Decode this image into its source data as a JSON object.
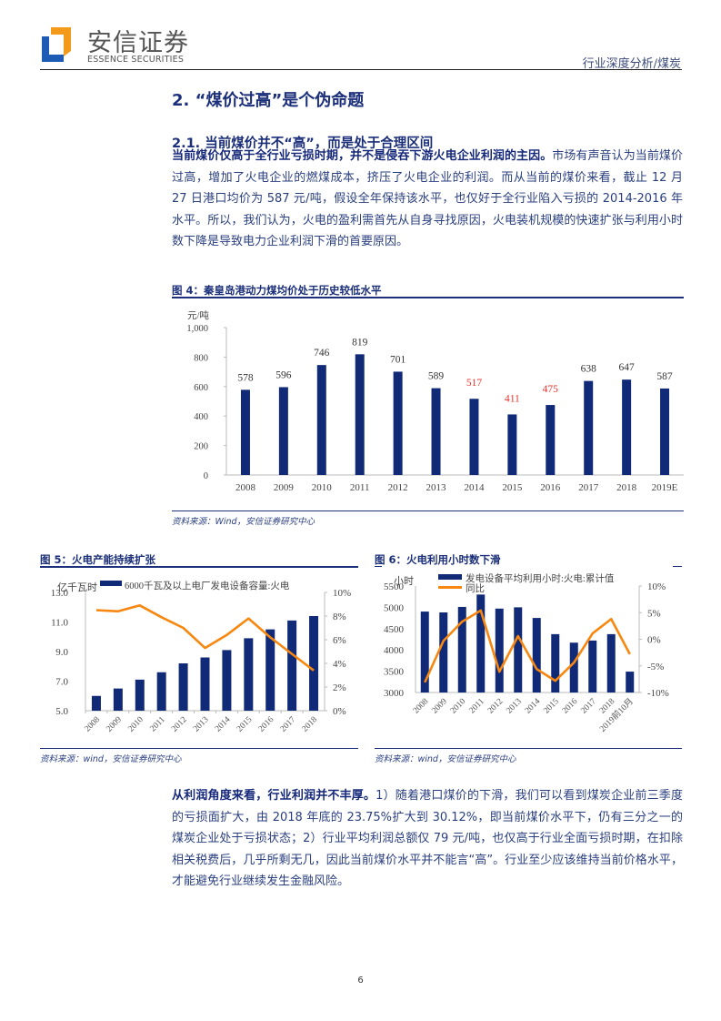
{
  "header": {
    "logo_cn": "安信证券",
    "logo_en": "ESSENCE SECURITIES",
    "logo_colors": {
      "orange": "#f39a1b",
      "blue": "#1d5bb5"
    },
    "report_type": "行业深度分析/煤炭"
  },
  "section": {
    "title": "2. “煤价过高”是个伪命题",
    "subtitle": "2.1. 当前煤价并不“高”，而是处于合理区间"
  },
  "paragraph1": {
    "bold": "当前煤价仅高于全行业亏损时期，并不是侵吞下游火电企业利润的主因。",
    "text": "市场有声音认为当前煤价过高，增加了火电企业的燃煤成本，挤压了火电企业的利润。而从当前的煤价来看，截止 12 月 27 日港口均价为 587 元/吨，假设全年保持该水平，也仅好于全行业陷入亏损的 2014-2016 年水平。所以，我们认为，火电的盈利需首先从自身寻找原因，火电装机规模的快速扩张与利用小时数下降是导致电力企业利润下滑的首要原因。"
  },
  "figure4": {
    "title": "图 4：秦皇岛港动力煤均价处于历史较低水平",
    "source": "资料来源：Wind，安信证券研究中心"
  },
  "figure5": {
    "title": "图 5：火电产能持续扩张",
    "source": "资料来源：wind，安信证券研究中心"
  },
  "figure6": {
    "title": "图 6：火电利用小时数下滑",
    "source": "资料来源：wind，安信证券研究中心"
  },
  "paragraph2": {
    "bold": "从利润角度来看，行业利润并不丰厚。",
    "text": "1）随着港口煤价的下滑，我们可以看到煤炭企业前三季度的亏损面扩大，由 2018 年底的 23.75%扩大到 30.12%，即当前煤价水平下，仍有三分之一的煤炭企业处于亏损状态；2）行业平均利润总额仅 79 元/吨，也仅高于行业全面亏损时期，在扣除相关税费后，几乎所剩无几，因此当前煤价水平并不能言“高”。行业至少应该维持当前价格水平，才能避免行业继续发生金融风险。"
  },
  "page_number": "6",
  "chart_data": [
    {
      "type": "bar",
      "title": "秦皇岛港动力煤均价处于历史较低水平",
      "ylabel": "元/吨",
      "xlabel": "",
      "ylim": [
        0,
        1000
      ],
      "yticks": [
        "0",
        "200",
        "400",
        "600",
        "800",
        "1,000"
      ],
      "categories": [
        "2008",
        "2009",
        "2010",
        "2011",
        "2012",
        "2013",
        "2014",
        "2015",
        "2016",
        "2017",
        "2018",
        "2019E"
      ],
      "values": [
        578,
        596,
        746,
        819,
        701,
        589,
        517,
        411,
        475,
        638,
        647,
        587
      ],
      "highlight_red_labels": [
        "2014",
        "2015",
        "2016"
      ],
      "colors": {
        "bar": "#102a78",
        "label": "#333333",
        "label_highlight": "#e8302a"
      },
      "grid": false,
      "legend": null
    },
    {
      "type": "bar",
      "title": "火电产能持续扩张",
      "ylabel": "亿千瓦时",
      "y2label": "",
      "ylim": [
        5.0,
        13.0
      ],
      "yticks": [
        "5.0",
        "7.0",
        "9.0",
        "11.0",
        "13.0"
      ],
      "y2lim": [
        0,
        10
      ],
      "y2ticks": [
        "0%",
        "2%",
        "4%",
        "6%",
        "8%",
        "10%"
      ],
      "categories": [
        "2008",
        "2009",
        "2010",
        "2011",
        "2012",
        "2013",
        "2014",
        "2015",
        "2016",
        "2017",
        "2018"
      ],
      "series": [
        {
          "name": "6000千瓦及以上电厂发电设备容量:火电",
          "kind": "bar",
          "axis": "left",
          "color": "#102a78",
          "values": [
            6.0,
            6.5,
            7.1,
            7.6,
            8.2,
            8.6,
            9.1,
            9.9,
            10.5,
            11.1,
            11.4
          ]
        },
        {
          "name": "同比",
          "kind": "line",
          "axis": "right",
          "color": "#f7870f",
          "values": [
            8.5,
            8.4,
            8.9,
            7.9,
            7.0,
            5.3,
            6.4,
            7.8,
            6.2,
            4.8,
            3.4
          ]
        }
      ],
      "legend_position": "top",
      "grid": false
    },
    {
      "type": "bar",
      "title": "火电利用小时数下滑",
      "ylabel": "小时",
      "ylim": [
        3000,
        5500
      ],
      "yticks": [
        "3000",
        "3500",
        "4000",
        "4500",
        "5000",
        "5500"
      ],
      "y2lim": [
        -10,
        10
      ],
      "y2ticks": [
        "-10%",
        "-5%",
        "0%",
        "5%",
        "10%"
      ],
      "categories": [
        "2008",
        "2009",
        "2010",
        "2011",
        "2012",
        "2013",
        "2014",
        "2015",
        "2016",
        "2017",
        "2018",
        "2019前10月"
      ],
      "series": [
        {
          "name": "发电设备平均利用小时:火电:累计值",
          "kind": "bar",
          "axis": "left",
          "color": "#102a78",
          "values": [
            4900,
            4880,
            5010,
            5300,
            4970,
            5000,
            4750,
            4370,
            4170,
            4220,
            4370,
            3490
          ]
        },
        {
          "name": "同比",
          "kind": "line",
          "axis": "right",
          "color": "#f7870f",
          "values": [
            -8.1,
            -0.3,
            3.3,
            5.4,
            -6.1,
            0.6,
            -5.6,
            -7.8,
            -4.4,
            1.1,
            3.8,
            -2.8
          ]
        }
      ],
      "legend_position": "top",
      "grid": false
    }
  ]
}
